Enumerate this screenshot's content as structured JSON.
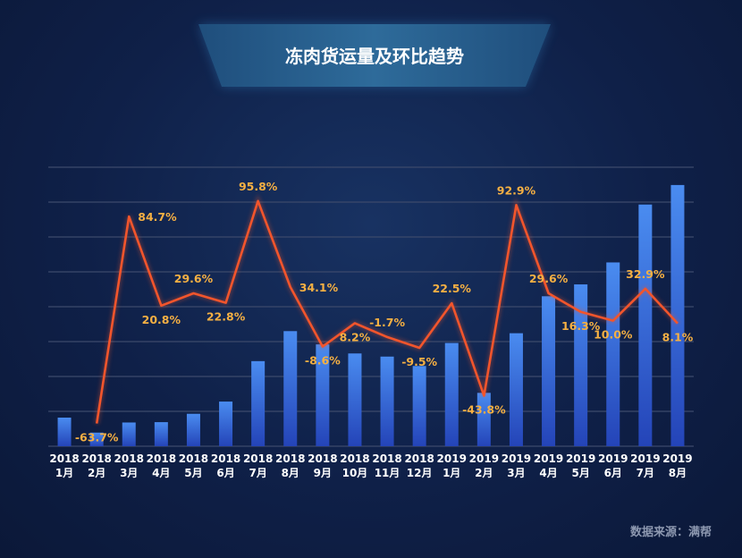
{
  "title": "冻肉货运量及环比趋势",
  "source": "数据来源：满帮",
  "colors": {
    "bar_top": "#4a8cf0",
    "bar_bottom": "#2444b8",
    "line": "#f2552c",
    "label": "#f5b043",
    "grid": "#3c4a6b",
    "axis_text": "#ffffff"
  },
  "chart_data": {
    "type": "bar+line",
    "categories": [
      [
        "2018",
        "1月"
      ],
      [
        "2018",
        "2月"
      ],
      [
        "2018",
        "3月"
      ],
      [
        "2018",
        "4月"
      ],
      [
        "2018",
        "5月"
      ],
      [
        "2018",
        "6月"
      ],
      [
        "2018",
        "7月"
      ],
      [
        "2018",
        "8月"
      ],
      [
        "2018",
        "9月"
      ],
      [
        "2018",
        "10月"
      ],
      [
        "2018",
        "11月"
      ],
      [
        "2018",
        "12月"
      ],
      [
        "2019",
        "1月"
      ],
      [
        "2019",
        "2月"
      ],
      [
        "2019",
        "3月"
      ],
      [
        "2019",
        "4月"
      ],
      [
        "2019",
        "5月"
      ],
      [
        "2019",
        "6月"
      ],
      [
        "2019",
        "7月"
      ],
      [
        "2019",
        "8月"
      ]
    ],
    "bar_values": [
      8.2,
      3.9,
      6.8,
      6.9,
      9.3,
      12.8,
      24.4,
      33.0,
      29.2,
      26.6,
      25.7,
      23.0,
      29.6,
      15.3,
      32.4,
      43.0,
      46.4,
      52.7,
      69.3,
      74.9
    ],
    "bar_ylim": [
      0,
      80
    ],
    "mom_values": [
      null,
      -63.7,
      84.7,
      20.8,
      29.6,
      22.8,
      95.8,
      34.1,
      -8.6,
      8.2,
      -1.7,
      -9.5,
      22.5,
      -43.8,
      92.9,
      29.6,
      16.3,
      10.0,
      32.9,
      8.1
    ],
    "mom_labels": [
      "",
      "-63.7%",
      "84.7%",
      "20.8%",
      "29.6%",
      "22.8%",
      "95.8%",
      "34.1%",
      "-8.6%",
      "8.2%",
      "-1.7%",
      "-9.5%",
      "22.5%",
      "-43.8%",
      "92.9%",
      "29.6%",
      "16.3%",
      "10.0%",
      "32.9%",
      "8.1%"
    ],
    "label_positions": [
      "",
      "below",
      "right",
      "below",
      "above",
      "below",
      "above",
      "right",
      "below",
      "below",
      "above",
      "below",
      "above",
      "below",
      "above",
      "above",
      "below",
      "below",
      "above",
      "below"
    ],
    "line_ylim": [
      -80,
      120
    ],
    "grid": true,
    "legend": "none"
  }
}
